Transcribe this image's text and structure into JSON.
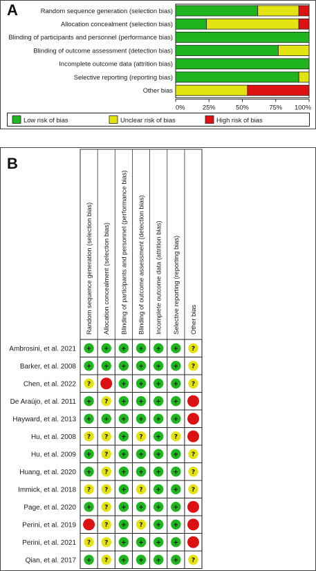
{
  "colors": {
    "low": "#1fb51f",
    "unclear": "#e3e312",
    "high": "#dd1111"
  },
  "chart_data": [
    {
      "panel_label": "A",
      "type": "bar",
      "orientation": "horizontal",
      "stacked": true,
      "categories": [
        "Random sequence generation (selection bias)",
        "Allocation concealment (selection bias)",
        "Blinding of participants and personnel (performance bias)",
        "Blinding of outcome assessment (detection bias)",
        "Incomplete outcome data (attrition bias)",
        "Selective reporting (reporting bias)",
        "Other bias"
      ],
      "series": [
        {
          "name": "Low risk of bias",
          "color": "#1fb51f",
          "values": [
            61.5,
            23.1,
            100,
            76.9,
            100,
            92.3,
            0
          ]
        },
        {
          "name": "Unclear risk of bias",
          "color": "#e3e312",
          "values": [
            30.8,
            69.2,
            0,
            23.1,
            0,
            7.7,
            53.8
          ]
        },
        {
          "name": "High risk of bias",
          "color": "#dd1111",
          "values": [
            7.7,
            7.7,
            0,
            0,
            0,
            0,
            46.2
          ]
        }
      ],
      "xlim": [
        0,
        100
      ],
      "xticks": [
        "0%",
        "25%",
        "50%",
        "75%",
        "100%"
      ],
      "legend_position": "bottom"
    },
    {
      "panel_label": "B",
      "type": "table",
      "columns": [
        "Random sequence generation (selection bias)",
        "Allocation concealment (selection bias)",
        "Blinding of participants and personnel (performance bias)",
        "Blinding of outcome assessment (detection bias)",
        "Incomplete outcome data (attrition bias)",
        "Selective reporting (reporting bias)",
        "Other bias"
      ],
      "symbols": {
        "low": "+",
        "unclear": "?",
        "high": ""
      },
      "rows": [
        {
          "study": "Ambrosini, et al. 2021",
          "judgements": [
            "low",
            "low",
            "low",
            "low",
            "low",
            "low",
            "unclear"
          ]
        },
        {
          "study": "Barker, et al. 2008",
          "judgements": [
            "low",
            "low",
            "low",
            "low",
            "low",
            "low",
            "unclear"
          ]
        },
        {
          "study": "Chen, et al. 2022",
          "judgements": [
            "unclear",
            "high",
            "low",
            "low",
            "low",
            "low",
            "unclear"
          ]
        },
        {
          "study": "De Araújo, et al. 2011",
          "judgements": [
            "low",
            "unclear",
            "low",
            "low",
            "low",
            "low",
            "high"
          ]
        },
        {
          "study": "Hayward, et al. 2013",
          "judgements": [
            "low",
            "low",
            "low",
            "low",
            "low",
            "low",
            "high"
          ]
        },
        {
          "study": "Hu, et al. 2008",
          "judgements": [
            "unclear",
            "unclear",
            "low",
            "unclear",
            "low",
            "unclear",
            "high"
          ]
        },
        {
          "study": "Hu, et al. 2009",
          "judgements": [
            "low",
            "unclear",
            "low",
            "low",
            "low",
            "low",
            "unclear"
          ]
        },
        {
          "study": "Huang, et al. 2020",
          "judgements": [
            "low",
            "unclear",
            "low",
            "low",
            "low",
            "low",
            "unclear"
          ]
        },
        {
          "study": "Immick, et al. 2018",
          "judgements": [
            "unclear",
            "unclear",
            "low",
            "unclear",
            "low",
            "low",
            "unclear"
          ]
        },
        {
          "study": "Page, et al. 2020",
          "judgements": [
            "low",
            "unclear",
            "low",
            "low",
            "low",
            "low",
            "high"
          ]
        },
        {
          "study": "Perini, et al. 2019",
          "judgements": [
            "high",
            "unclear",
            "low",
            "unclear",
            "low",
            "low",
            "high"
          ]
        },
        {
          "study": "Perini, et al. 2021",
          "judgements": [
            "unclear",
            "unclear",
            "low",
            "low",
            "low",
            "low",
            "high"
          ]
        },
        {
          "study": "Qian, et al. 2017",
          "judgements": [
            "low",
            "unclear",
            "low",
            "low",
            "low",
            "low",
            "unclear"
          ]
        }
      ]
    }
  ]
}
